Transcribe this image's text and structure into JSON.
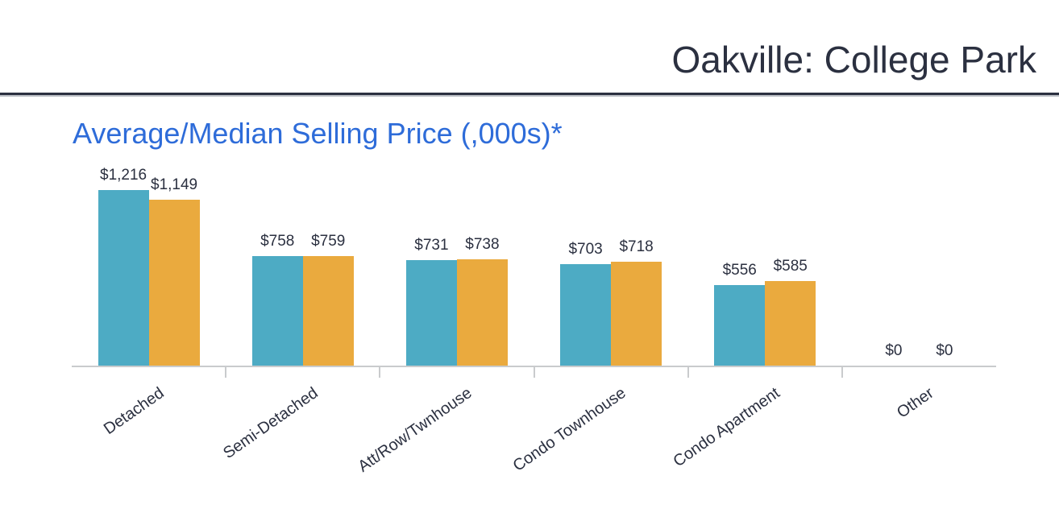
{
  "header": {
    "title": "Oakville: College Park"
  },
  "chart": {
    "heading": "Average/Median Selling Price (,000s)*"
  },
  "colors": {
    "average_bar_teal": "#4dabc4",
    "median_bar_orange": "#eaaa3e",
    "heading_blue": "#2e6cd9",
    "text_navy": "#2b3040",
    "axis_gray": "#c9cbcd"
  },
  "chart_data": {
    "type": "bar",
    "title": "Average/Median Selling Price (,000s)*",
    "categories": [
      "Detached",
      "Semi-Detached",
      "Att/Row/Twnhouse",
      "Condo Townhouse",
      "Condo Apartment",
      "Other"
    ],
    "series": [
      {
        "name": "Average",
        "color": "#4dabc4",
        "values": [
          1216,
          758,
          731,
          703,
          556,
          0
        ],
        "labels": [
          "$1,216",
          "$758",
          "$731",
          "$703",
          "$556",
          "$0"
        ]
      },
      {
        "name": "Median",
        "color": "#eaaa3e",
        "values": [
          1149,
          759,
          738,
          718,
          585,
          0
        ],
        "labels": [
          "$1,149",
          "$759",
          "$738",
          "$718",
          "$585",
          "$0"
        ]
      }
    ],
    "value_prefix": "$",
    "units": "thousands of dollars",
    "ylim": [
      0,
      1350
    ],
    "grid": false,
    "legend": "none",
    "data_labels": "above bars",
    "category_label_rotation_deg": -35
  }
}
